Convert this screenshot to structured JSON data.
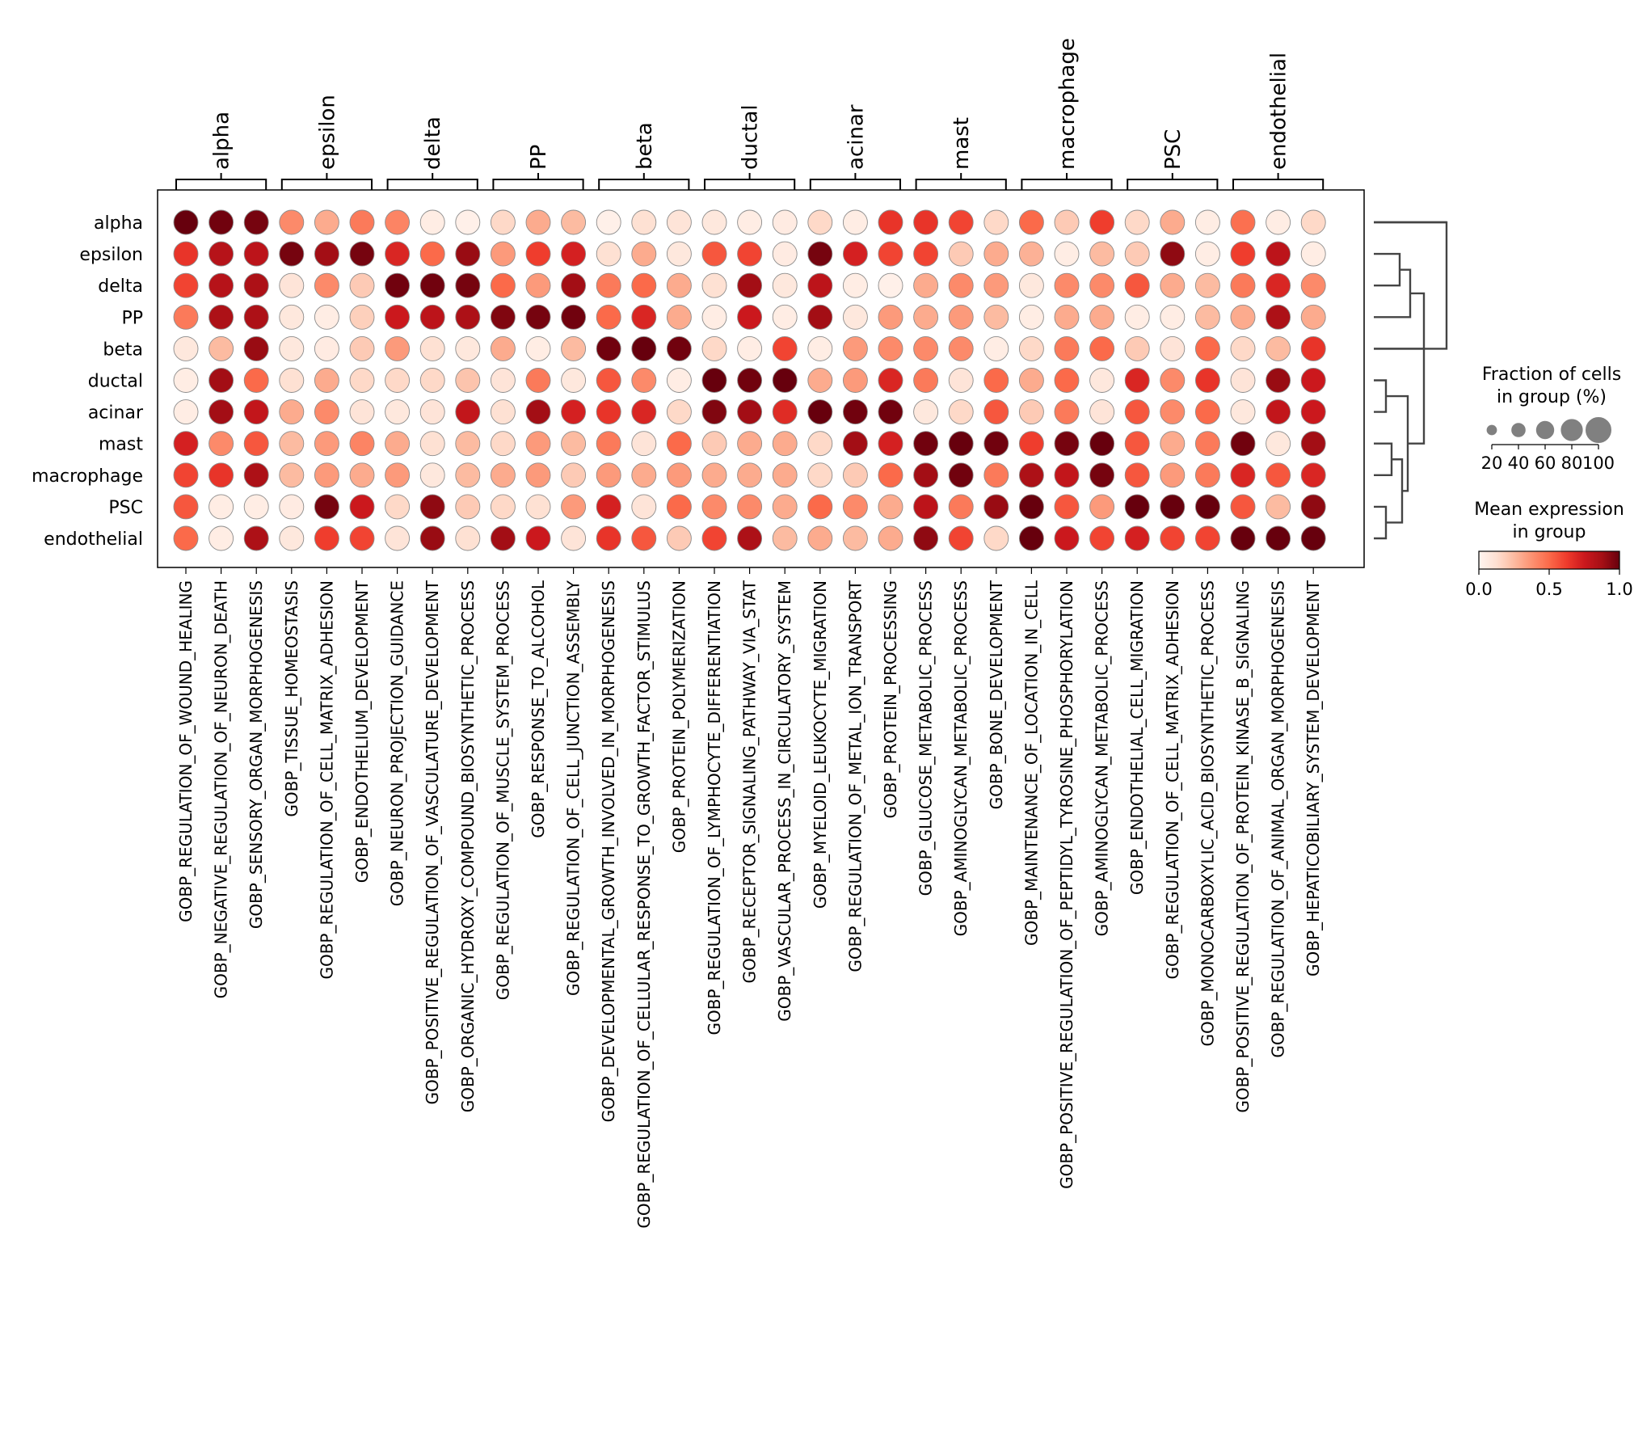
{
  "chart_data": {
    "type": "dotplot",
    "rows": [
      "alpha",
      "epsilon",
      "delta",
      "PP",
      "beta",
      "ductal",
      "acinar",
      "mast",
      "macrophage",
      "PSC",
      "endothelial"
    ],
    "groups": [
      {
        "label": "alpha",
        "span": 3
      },
      {
        "label": "epsilon",
        "span": 3
      },
      {
        "label": "delta",
        "span": 3
      },
      {
        "label": "PP",
        "span": 3
      },
      {
        "label": "beta",
        "span": 3
      },
      {
        "label": "ductal",
        "span": 3
      },
      {
        "label": "acinar",
        "span": 3
      },
      {
        "label": "mast",
        "span": 3
      },
      {
        "label": "macrophage",
        "span": 3
      },
      {
        "label": "PSC",
        "span": 3
      },
      {
        "label": "endothelial",
        "span": 3
      }
    ],
    "columns": [
      "GOBP_REGULATION_OF_WOUND_HEALING",
      "GOBP_NEGATIVE_REGULATION_OF_NEURON_DEATH",
      "GOBP_SENSORY_ORGAN_MORPHOGENESIS",
      "GOBP_TISSUE_HOMEOSTASIS",
      "GOBP_REGULATION_OF_CELL_MATRIX_ADHESION",
      "GOBP_ENDOTHELIUM_DEVELOPMENT",
      "GOBP_NEURON_PROJECTION_GUIDANCE",
      "GOBP_POSITIVE_REGULATION_OF_VASCULATURE_DEVELOPMENT",
      "GOBP_ORGANIC_HYDROXY_COMPOUND_BIOSYNTHETIC_PROCESS",
      "GOBP_REGULATION_OF_MUSCLE_SYSTEM_PROCESS",
      "GOBP_RESPONSE_TO_ALCOHOL",
      "GOBP_REGULATION_OF_CELL_JUNCTION_ASSEMBLY",
      "GOBP_DEVELOPMENTAL_GROWTH_INVOLVED_IN_MORPHOGENESIS",
      "GOBP_REGULATION_OF_CELLULAR_RESPONSE_TO_GROWTH_FACTOR_STIMULUS",
      "GOBP_PROTEIN_POLYMERIZATION",
      "GOBP_REGULATION_OF_LYMPHOCYTE_DIFFERENTIATION",
      "GOBP_RECEPTOR_SIGNALING_PATHWAY_VIA_STAT",
      "GOBP_VASCULAR_PROCESS_IN_CIRCULATORY_SYSTEM",
      "GOBP_MYELOID_LEUKOCYTE_MIGRATION",
      "GOBP_REGULATION_OF_METAL_ION_TRANSPORT",
      "GOBP_PROTEIN_PROCESSING",
      "GOBP_GLUCOSE_METABOLIC_PROCESS",
      "GOBP_AMINOGLYCAN_METABOLIC_PROCESS",
      "GOBP_BONE_DEVELOPMENT",
      "GOBP_MAINTENANCE_OF_LOCATION_IN_CELL",
      "GOBP_POSITIVE_REGULATION_OF_PEPTIDYL_TYROSINE_PHOSPHORYLATION",
      "GOBP_AMINOGLYCAN_METABOLIC_PROCESS",
      "GOBP_ENDOTHELIAL_CELL_MIGRATION",
      "GOBP_REGULATION_OF_CELL_MATRIX_ADHESION",
      "GOBP_MONOCARBOXYLIC_ACID_BIOSYNTHETIC_PROCESS",
      "GOBP_POSITIVE_REGULATION_OF_PROTEIN_KINASE_B_SIGNALING",
      "GOBP_REGULATION_OF_ANIMAL_ORGAN_MORPHOGENESIS",
      "GOBP_HEPATICOBILIARY_SYSTEM_DEVELOPMENT"
    ],
    "values": [
      [
        1.0,
        0.98,
        0.97,
        0.4,
        0.3,
        0.45,
        0.42,
        0.05,
        0.03,
        0.15,
        0.3,
        0.25,
        0.03,
        0.12,
        0.1,
        0.08,
        0.05,
        0.06,
        0.15,
        0.05,
        0.65,
        0.65,
        0.6,
        0.15,
        0.5,
        0.2,
        0.62,
        0.15,
        0.3,
        0.05,
        0.48,
        0.05,
        0.15
      ],
      [
        0.65,
        0.82,
        0.8,
        0.97,
        0.88,
        0.97,
        0.7,
        0.5,
        0.9,
        0.35,
        0.62,
        0.72,
        0.12,
        0.3,
        0.08,
        0.55,
        0.6,
        0.06,
        0.97,
        0.72,
        0.6,
        0.6,
        0.2,
        0.3,
        0.28,
        0.05,
        0.25,
        0.2,
        0.92,
        0.05,
        0.62,
        0.8,
        0.05
      ],
      [
        0.6,
        0.82,
        0.85,
        0.1,
        0.4,
        0.2,
        0.98,
        0.98,
        0.97,
        0.5,
        0.35,
        0.88,
        0.45,
        0.5,
        0.3,
        0.12,
        0.88,
        0.08,
        0.8,
        0.05,
        0.03,
        0.3,
        0.4,
        0.35,
        0.08,
        0.4,
        0.4,
        0.55,
        0.3,
        0.25,
        0.45,
        0.7,
        0.4
      ],
      [
        0.45,
        0.85,
        0.85,
        0.08,
        0.05,
        0.18,
        0.75,
        0.8,
        0.85,
        0.95,
        0.97,
        0.98,
        0.5,
        0.7,
        0.3,
        0.05,
        0.75,
        0.05,
        0.88,
        0.08,
        0.35,
        0.3,
        0.35,
        0.25,
        0.05,
        0.3,
        0.3,
        0.05,
        0.05,
        0.25,
        0.3,
        0.85,
        0.3
      ],
      [
        0.08,
        0.25,
        0.9,
        0.08,
        0.06,
        0.2,
        0.35,
        0.12,
        0.08,
        0.3,
        0.05,
        0.25,
        0.98,
        1.0,
        0.98,
        0.15,
        0.05,
        0.6,
        0.05,
        0.35,
        0.4,
        0.4,
        0.4,
        0.05,
        0.15,
        0.45,
        0.5,
        0.2,
        0.1,
        0.5,
        0.15,
        0.25,
        0.65
      ],
      [
        0.05,
        0.88,
        0.5,
        0.12,
        0.3,
        0.15,
        0.15,
        0.15,
        0.22,
        0.1,
        0.45,
        0.08,
        0.55,
        0.4,
        0.05,
        1.0,
        0.98,
        1.0,
        0.3,
        0.35,
        0.7,
        0.45,
        0.1,
        0.5,
        0.3,
        0.5,
        0.08,
        0.7,
        0.4,
        0.65,
        0.1,
        0.9,
        0.75
      ],
      [
        0.05,
        0.88,
        0.78,
        0.3,
        0.4,
        0.1,
        0.08,
        0.1,
        0.78,
        0.12,
        0.88,
        0.72,
        0.65,
        0.7,
        0.15,
        0.95,
        0.88,
        0.68,
        1.0,
        0.98,
        0.98,
        0.08,
        0.15,
        0.55,
        0.2,
        0.45,
        0.1,
        0.55,
        0.4,
        0.5,
        0.08,
        0.78,
        0.75
      ],
      [
        0.72,
        0.4,
        0.55,
        0.25,
        0.35,
        0.42,
        0.3,
        0.12,
        0.25,
        0.15,
        0.35,
        0.25,
        0.45,
        0.1,
        0.5,
        0.2,
        0.3,
        0.3,
        0.15,
        0.88,
        0.72,
        0.98,
        1.0,
        0.98,
        0.62,
        0.97,
        1.0,
        0.55,
        0.3,
        0.45,
        0.98,
        0.08,
        0.88
      ],
      [
        0.6,
        0.65,
        0.85,
        0.25,
        0.35,
        0.3,
        0.35,
        0.08,
        0.25,
        0.3,
        0.35,
        0.2,
        0.35,
        0.3,
        0.35,
        0.3,
        0.3,
        0.3,
        0.15,
        0.2,
        0.5,
        0.88,
        0.98,
        0.45,
        0.85,
        0.78,
        0.97,
        0.55,
        0.35,
        0.45,
        0.7,
        0.55,
        0.7
      ],
      [
        0.55,
        0.05,
        0.05,
        0.06,
        0.97,
        0.75,
        0.15,
        0.92,
        0.2,
        0.15,
        0.12,
        0.35,
        0.72,
        0.1,
        0.5,
        0.4,
        0.4,
        0.3,
        0.5,
        0.4,
        0.3,
        0.8,
        0.45,
        0.9,
        1.0,
        0.55,
        0.35,
        1.0,
        1.0,
        1.0,
        0.55,
        0.25,
        0.92
      ],
      [
        0.5,
        0.05,
        0.85,
        0.08,
        0.62,
        0.6,
        0.1,
        0.9,
        0.12,
        0.88,
        0.75,
        0.1,
        0.65,
        0.55,
        0.2,
        0.6,
        0.85,
        0.25,
        0.3,
        0.25,
        0.3,
        0.92,
        0.6,
        0.15,
        1.0,
        0.75,
        0.6,
        0.72,
        0.6,
        0.6,
        1.0,
        1.0,
        1.0
      ]
    ],
    "size_legend": {
      "title": "Fraction of cells\nin group (%)",
      "ticks": [
        20,
        40,
        60,
        80,
        100
      ]
    },
    "color_legend": {
      "title": "Mean expression\nin group",
      "ticks": [
        "0.0",
        "0.5",
        "1.0"
      ],
      "range": [
        0,
        1
      ],
      "colormap": "Reds"
    },
    "dendrogram": true
  }
}
